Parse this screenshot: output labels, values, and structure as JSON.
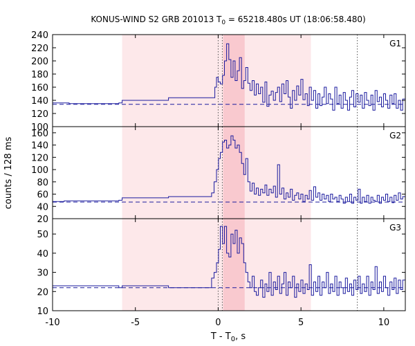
{
  "chart_data": {
    "type": "line",
    "title_main": "KONUS-WIND S2 GRB 201013 T",
    "title_sub": "0",
    "title_rest": " = 65218.480s UT (18:06:58.480)",
    "xlabel_main": "T - T",
    "xlabel_sub": "0",
    "xlabel_rest": ", s",
    "ylabel": "counts / 128 ms",
    "xlim": [
      -10,
      11.3
    ],
    "x_ticks": [
      -10,
      -5,
      0,
      5,
      10
    ],
    "x_tick_labels": [
      "-10",
      "-5",
      "0",
      "5",
      "10"
    ],
    "bg_interval": [
      -5.8,
      5.6
    ],
    "peak_interval": [
      0.3,
      1.6
    ],
    "dotted_lines": [
      0,
      0.25,
      8.4
    ],
    "colors": {
      "line": "#1a1a9e",
      "shade_light": "#fde8ea",
      "shade_dark": "#f9c9cf",
      "axis": "#000000"
    },
    "panels": [
      {
        "label": "G1",
        "ylim": [
          100,
          240
        ],
        "y_ticks": [
          100,
          120,
          140,
          160,
          180,
          200,
          220,
          240
        ],
        "background_level": 134,
        "steps": [
          [
            -10,
            136
          ],
          [
            -9,
            135
          ],
          [
            -6,
            136
          ],
          [
            -5.8,
            140
          ],
          [
            -3,
            144
          ],
          [
            -1,
            144
          ],
          [
            -0.3,
            144
          ],
          [
            -0.2,
            160
          ],
          [
            -0.1,
            175
          ],
          [
            0,
            168
          ],
          [
            0.13,
            165
          ],
          [
            0.26,
            178
          ],
          [
            0.38,
            200
          ],
          [
            0.51,
            226
          ],
          [
            0.64,
            202
          ],
          [
            0.77,
            175
          ],
          [
            0.9,
            200
          ],
          [
            1.02,
            170
          ],
          [
            1.15,
            185
          ],
          [
            1.28,
            205
          ],
          [
            1.41,
            158
          ],
          [
            1.54,
            170
          ],
          [
            1.66,
            190
          ],
          [
            1.79,
            166
          ],
          [
            1.92,
            155
          ],
          [
            2.05,
            170
          ],
          [
            2.18,
            148
          ],
          [
            2.3,
            165
          ],
          [
            2.43,
            150
          ],
          [
            2.56,
            160
          ],
          [
            2.69,
            137
          ],
          [
            2.82,
            168
          ],
          [
            2.94,
            131
          ],
          [
            3.07,
            148
          ],
          [
            3.2,
            154
          ],
          [
            3.33,
            140
          ],
          [
            3.46,
            152
          ],
          [
            3.58,
            160
          ],
          [
            3.71,
            138
          ],
          [
            3.84,
            165
          ],
          [
            3.97,
            150
          ],
          [
            4.1,
            170
          ],
          [
            4.22,
            145
          ],
          [
            4.35,
            128
          ],
          [
            4.48,
            155
          ],
          [
            4.61,
            140
          ],
          [
            4.74,
            162
          ],
          [
            4.86,
            148
          ],
          [
            4.99,
            172
          ],
          [
            5.12,
            141
          ],
          [
            5.25,
            150
          ],
          [
            5.38,
            132
          ],
          [
            5.5,
            160
          ],
          [
            5.63,
            140
          ],
          [
            5.76,
            155
          ],
          [
            5.89,
            128
          ],
          [
            6.02,
            150
          ],
          [
            6.14,
            132
          ],
          [
            6.27,
            145
          ],
          [
            6.4,
            160
          ],
          [
            6.53,
            135
          ],
          [
            6.66,
            150
          ],
          [
            6.78,
            142
          ],
          [
            6.91,
            125
          ],
          [
            7.04,
            160
          ],
          [
            7.17,
            135
          ],
          [
            7.3,
            148
          ],
          [
            7.42,
            128
          ],
          [
            7.55,
            152
          ],
          [
            7.68,
            140
          ],
          [
            7.81,
            125
          ],
          [
            7.94,
            145
          ],
          [
            8.06,
            155
          ],
          [
            8.19,
            130
          ],
          [
            8.32,
            150
          ],
          [
            8.45,
            137
          ],
          [
            8.58,
            148
          ],
          [
            8.7,
            128
          ],
          [
            8.83,
            152
          ],
          [
            8.96,
            140
          ],
          [
            9.09,
            132
          ],
          [
            9.22,
            148
          ],
          [
            9.34,
            125
          ],
          [
            9.47,
            155
          ],
          [
            9.6,
            138
          ],
          [
            9.73,
            145
          ],
          [
            9.86,
            130
          ],
          [
            9.98,
            150
          ],
          [
            10.11,
            140
          ],
          [
            10.24,
            128
          ],
          [
            10.37,
            148
          ],
          [
            10.5,
            135
          ],
          [
            10.62,
            150
          ],
          [
            10.75,
            128
          ],
          [
            10.88,
            140
          ],
          [
            11.01,
            125
          ],
          [
            11.14,
            142
          ]
        ]
      },
      {
        "label": "G2",
        "ylim": [
          20,
          170
        ],
        "y_ticks": [
          20,
          40,
          60,
          80,
          100,
          120,
          140,
          160
        ],
        "background_level": 47,
        "steps": [
          [
            -10,
            48
          ],
          [
            -9.3,
            49
          ],
          [
            -6,
            50
          ],
          [
            -5.8,
            54
          ],
          [
            -3,
            56
          ],
          [
            -0.5,
            56
          ],
          [
            -0.4,
            62
          ],
          [
            -0.25,
            80
          ],
          [
            -0.1,
            100
          ],
          [
            0.02,
            118
          ],
          [
            0.13,
            128
          ],
          [
            0.26,
            145
          ],
          [
            0.38,
            148
          ],
          [
            0.51,
            135
          ],
          [
            0.64,
            140
          ],
          [
            0.77,
            155
          ],
          [
            0.9,
            148
          ],
          [
            1.02,
            135
          ],
          [
            1.15,
            140
          ],
          [
            1.28,
            128
          ],
          [
            1.41,
            110
          ],
          [
            1.54,
            92
          ],
          [
            1.66,
            118
          ],
          [
            1.79,
            80
          ],
          [
            1.92,
            65
          ],
          [
            2.05,
            78
          ],
          [
            2.18,
            60
          ],
          [
            2.3,
            70
          ],
          [
            2.43,
            58
          ],
          [
            2.56,
            68
          ],
          [
            2.69,
            62
          ],
          [
            2.82,
            75
          ],
          [
            2.94,
            58
          ],
          [
            3.07,
            68
          ],
          [
            3.2,
            62
          ],
          [
            3.33,
            73
          ],
          [
            3.46,
            55
          ],
          [
            3.58,
            108
          ],
          [
            3.71,
            60
          ],
          [
            3.84,
            70
          ],
          [
            3.97,
            52
          ],
          [
            4.1,
            62
          ],
          [
            4.22,
            55
          ],
          [
            4.35,
            68
          ],
          [
            4.48,
            50
          ],
          [
            4.61,
            58
          ],
          [
            4.74,
            62
          ],
          [
            4.86,
            52
          ],
          [
            4.99,
            60
          ],
          [
            5.12,
            48
          ],
          [
            5.25,
            58
          ],
          [
            5.38,
            52
          ],
          [
            5.5,
            66
          ],
          [
            5.63,
            50
          ],
          [
            5.76,
            72
          ],
          [
            5.89,
            55
          ],
          [
            6.02,
            62
          ],
          [
            6.14,
            50
          ],
          [
            6.27,
            60
          ],
          [
            6.4,
            52
          ],
          [
            6.53,
            58
          ],
          [
            6.66,
            48
          ],
          [
            6.78,
            60
          ],
          [
            6.91,
            52
          ],
          [
            7.04,
            55
          ],
          [
            7.17,
            48
          ],
          [
            7.3,
            58
          ],
          [
            7.42,
            52
          ],
          [
            7.55,
            45
          ],
          [
            7.68,
            55
          ],
          [
            7.81,
            48
          ],
          [
            7.94,
            60
          ],
          [
            8.06,
            45
          ],
          [
            8.19,
            55
          ],
          [
            8.32,
            50
          ],
          [
            8.45,
            68
          ],
          [
            8.58,
            45
          ],
          [
            8.7,
            55
          ],
          [
            8.83,
            48
          ],
          [
            8.96,
            58
          ],
          [
            9.09,
            45
          ],
          [
            9.22,
            55
          ],
          [
            9.34,
            50
          ],
          [
            9.47,
            48
          ],
          [
            9.6,
            58
          ],
          [
            9.73,
            45
          ],
          [
            9.86,
            55
          ],
          [
            9.98,
            50
          ],
          [
            10.11,
            60
          ],
          [
            10.24,
            48
          ],
          [
            10.37,
            55
          ],
          [
            10.5,
            46
          ],
          [
            10.62,
            58
          ],
          [
            10.75,
            50
          ],
          [
            10.88,
            62
          ],
          [
            11.01,
            52
          ],
          [
            11.14,
            56
          ]
        ]
      },
      {
        "label": "G3",
        "ylim": [
          10,
          58
        ],
        "y_ticks": [
          10,
          20,
          30,
          40,
          50
        ],
        "background_level": 22,
        "steps": [
          [
            -10,
            23
          ],
          [
            -9,
            23
          ],
          [
            -6,
            22
          ],
          [
            -5.8,
            23
          ],
          [
            -3,
            22
          ],
          [
            -0.5,
            22
          ],
          [
            -0.4,
            27
          ],
          [
            -0.25,
            30
          ],
          [
            -0.1,
            35
          ],
          [
            0.02,
            42
          ],
          [
            0.13,
            54
          ],
          [
            0.26,
            45
          ],
          [
            0.38,
            54
          ],
          [
            0.51,
            40
          ],
          [
            0.64,
            38
          ],
          [
            0.77,
            50
          ],
          [
            0.9,
            45
          ],
          [
            1.02,
            52
          ],
          [
            1.15,
            40
          ],
          [
            1.28,
            48
          ],
          [
            1.41,
            45
          ],
          [
            1.54,
            35
          ],
          [
            1.66,
            30
          ],
          [
            1.79,
            25
          ],
          [
            1.92,
            22
          ],
          [
            2.05,
            28
          ],
          [
            2.18,
            20
          ],
          [
            2.3,
            18
          ],
          [
            2.43,
            22
          ],
          [
            2.56,
            26
          ],
          [
            2.69,
            17
          ],
          [
            2.82,
            24
          ],
          [
            2.94,
            20
          ],
          [
            3.07,
            30
          ],
          [
            3.2,
            18
          ],
          [
            3.33,
            25
          ],
          [
            3.46,
            21
          ],
          [
            3.58,
            28
          ],
          [
            3.71,
            19
          ],
          [
            3.84,
            24
          ],
          [
            3.97,
            30
          ],
          [
            4.1,
            18
          ],
          [
            4.22,
            25
          ],
          [
            4.35,
            22
          ],
          [
            4.48,
            28
          ],
          [
            4.61,
            17
          ],
          [
            4.74,
            24
          ],
          [
            4.86,
            20
          ],
          [
            4.99,
            26
          ],
          [
            5.12,
            19
          ],
          [
            5.25,
            24
          ],
          [
            5.38,
            21
          ],
          [
            5.5,
            34
          ],
          [
            5.63,
            18
          ],
          [
            5.76,
            25
          ],
          [
            5.89,
            20
          ],
          [
            6.02,
            28
          ],
          [
            6.14,
            18
          ],
          [
            6.27,
            25
          ],
          [
            6.4,
            22
          ],
          [
            6.53,
            30
          ],
          [
            6.66,
            19
          ],
          [
            6.78,
            24
          ],
          [
            6.91,
            20
          ],
          [
            7.04,
            28
          ],
          [
            7.17,
            18
          ],
          [
            7.3,
            25
          ],
          [
            7.42,
            22
          ],
          [
            7.55,
            19
          ],
          [
            7.68,
            27
          ],
          [
            7.81,
            20
          ],
          [
            7.94,
            24
          ],
          [
            8.06,
            18
          ],
          [
            8.19,
            26
          ],
          [
            8.32,
            21
          ],
          [
            8.45,
            28
          ],
          [
            8.58,
            19
          ],
          [
            8.7,
            24
          ],
          [
            8.83,
            20
          ],
          [
            8.96,
            28
          ],
          [
            9.09,
            18
          ],
          [
            9.22,
            25
          ],
          [
            9.34,
            21
          ],
          [
            9.47,
            33
          ],
          [
            9.6,
            19
          ],
          [
            9.73,
            25
          ],
          [
            9.86,
            20
          ],
          [
            9.98,
            28
          ],
          [
            10.11,
            22
          ],
          [
            10.24,
            18
          ],
          [
            10.37,
            25
          ],
          [
            10.5,
            21
          ],
          [
            10.62,
            27
          ],
          [
            10.75,
            19
          ],
          [
            10.88,
            26
          ],
          [
            11.01,
            21
          ],
          [
            11.14,
            26
          ]
        ]
      }
    ]
  }
}
